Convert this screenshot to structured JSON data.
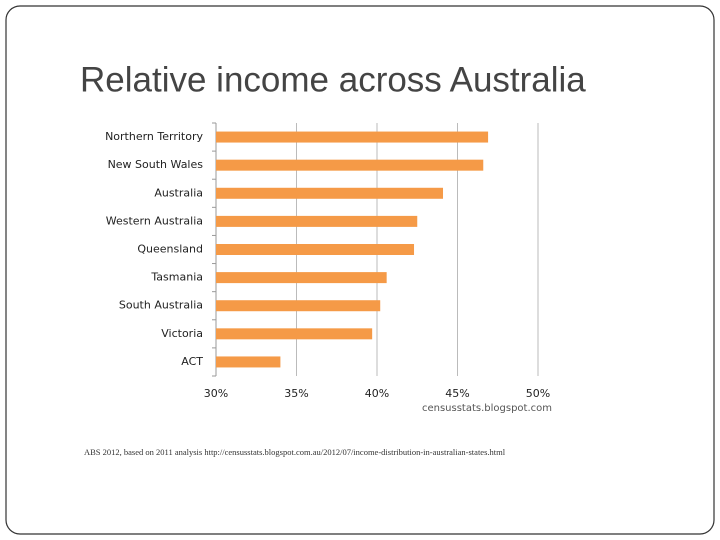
{
  "chart_data": {
    "type": "hbar",
    "title": "Relative income across Australia",
    "categories": [
      "Northern Territory",
      "New South Wales",
      "Australia",
      "Western Australia",
      "Queensland",
      "Tasmania",
      "South Australia",
      "Victoria",
      "ACT"
    ],
    "values": [
      46.9,
      46.6,
      44.1,
      42.5,
      42.3,
      40.6,
      40.2,
      39.7,
      34.0
    ],
    "color": "#f59a47",
    "xlim": [
      30,
      50
    ],
    "xticks": [
      {
        "value": 30,
        "label": "30%"
      },
      {
        "value": 35,
        "label": "35%"
      },
      {
        "value": 40,
        "label": "40%"
      },
      {
        "value": 45,
        "label": "45%"
      },
      {
        "value": 50,
        "label": "50%"
      }
    ],
    "grid": true,
    "annotation": "censusstats.blogspot.com",
    "source": "ABS 2012, based on 2011 analysis http://censusstats.blogspot.com.au/2012/07/income-distribution-in-australian-states.html"
  }
}
